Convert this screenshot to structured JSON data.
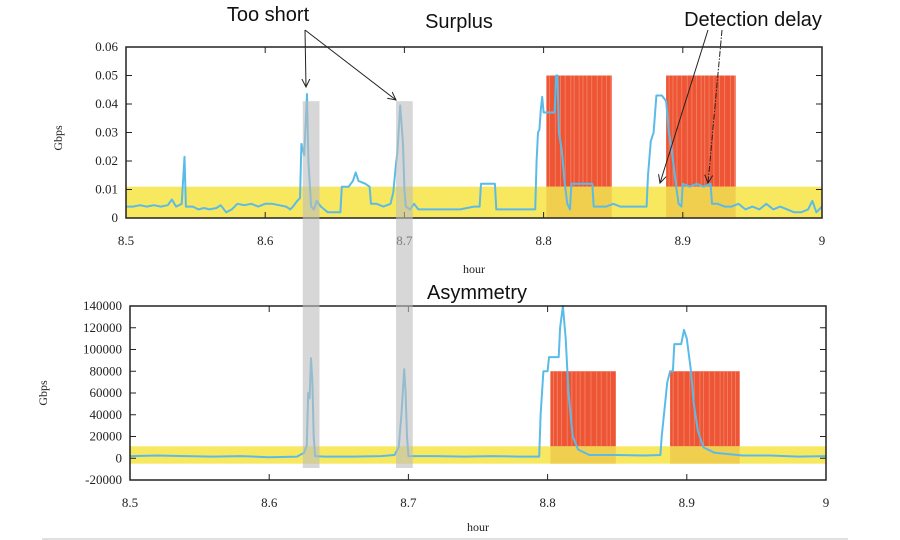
{
  "chart_data": [
    {
      "type": "line",
      "title": "Surplus",
      "xlabel": "hour",
      "ylabel": "Gbps",
      "xlim": [
        8.5,
        9
      ],
      "ylim": [
        0,
        0.06
      ],
      "x_ticks": [
        "8.5",
        "8.6",
        "8.7",
        "8.8",
        "8.9",
        "9"
      ],
      "y_ticks": [
        "0",
        "0.01",
        "0.02",
        "0.03",
        "0.04",
        "0.05",
        "0.06"
      ],
      "grid": false,
      "normal_band": {
        "y_min": 0,
        "y_max": 0.011,
        "color": "#f7e64f"
      },
      "alarm_regions": [
        {
          "x_start": 8.802,
          "x_end": 8.849,
          "y_max": 0.05,
          "color": "#ee5535"
        },
        {
          "x_start": 8.888,
          "x_end": 8.938,
          "y_max": 0.05,
          "color": "#ee5535"
        }
      ],
      "short_regions": [
        {
          "x_start": 8.627,
          "x_end": 8.639,
          "color": "#bdbdbd"
        },
        {
          "x_start": 8.694,
          "x_end": 8.706,
          "color": "#bdbdbd"
        }
      ],
      "series": [
        {
          "name": "Surplus",
          "color": "#5bbbe8",
          "points": [
            [
              8.5,
              0.004
            ],
            [
              8.505,
              0.004
            ],
            [
              8.51,
              0.0045
            ],
            [
              8.515,
              0.004
            ],
            [
              8.52,
              0.0045
            ],
            [
              8.525,
              0.004
            ],
            [
              8.53,
              0.0045
            ],
            [
              8.533,
              0.0065
            ],
            [
              8.536,
              0.004
            ],
            [
              8.54,
              0.005
            ],
            [
              8.542,
              0.0215
            ],
            [
              8.543,
              0.004
            ],
            [
              8.548,
              0.004
            ],
            [
              8.552,
              0.003
            ],
            [
              8.556,
              0.0035
            ],
            [
              8.56,
              0.003
            ],
            [
              8.565,
              0.0035
            ],
            [
              8.568,
              0.0045
            ],
            [
              8.572,
              0.002
            ],
            [
              8.576,
              0.003
            ],
            [
              8.58,
              0.005
            ],
            [
              8.585,
              0.0045
            ],
            [
              8.59,
              0.005
            ],
            [
              8.595,
              0.004
            ],
            [
              8.6,
              0.005
            ],
            [
              8.605,
              0.005
            ],
            [
              8.61,
              0.0045
            ],
            [
              8.615,
              0.004
            ],
            [
              8.618,
              0.003
            ],
            [
              8.62,
              0.004
            ],
            [
              8.623,
              0.006
            ],
            [
              8.625,
              0.007
            ],
            [
              8.626,
              0.026
            ],
            [
              8.628,
              0.022
            ],
            [
              8.63,
              0.0435
            ],
            [
              8.631,
              0.02
            ],
            [
              8.633,
              0.004
            ],
            [
              8.635,
              0.003
            ],
            [
              8.637,
              0.006
            ],
            [
              8.64,
              0.004
            ],
            [
              8.645,
              0.002
            ],
            [
              8.65,
              0.002
            ],
            [
              8.654,
              0.002
            ],
            [
              8.655,
              0.011
            ],
            [
              8.66,
              0.011
            ],
            [
              8.663,
              0.013
            ],
            [
              8.665,
              0.016
            ],
            [
              8.667,
              0.013
            ],
            [
              8.672,
              0.012
            ],
            [
              8.675,
              0.011
            ],
            [
              8.676,
              0.005
            ],
            [
              8.68,
              0.005
            ],
            [
              8.685,
              0.004
            ],
            [
              8.69,
              0.005
            ],
            [
              8.692,
              0.009
            ],
            [
              8.694,
              0.019
            ],
            [
              8.695,
              0.023
            ],
            [
              8.697,
              0.0395
            ],
            [
              8.699,
              0.026
            ],
            [
              8.7,
              0.01
            ],
            [
              8.701,
              0.004
            ],
            [
              8.704,
              0.003
            ],
            [
              8.707,
              0.005
            ],
            [
              8.71,
              0.003
            ],
            [
              8.72,
              0.003
            ],
            [
              8.73,
              0.003
            ],
            [
              8.74,
              0.003
            ],
            [
              8.75,
              0.004
            ],
            [
              8.754,
              0.004
            ],
            [
              8.755,
              0.012
            ],
            [
              8.76,
              0.012
            ],
            [
              8.765,
              0.012
            ],
            [
              8.766,
              0.003
            ],
            [
              8.77,
              0.003
            ],
            [
              8.78,
              0.003
            ],
            [
              8.79,
              0.003
            ],
            [
              8.794,
              0.003
            ],
            [
              8.795,
              0.02
            ],
            [
              8.796,
              0.03
            ],
            [
              8.797,
              0.031
            ],
            [
              8.798,
              0.038
            ],
            [
              8.799,
              0.0425
            ],
            [
              8.8,
              0.037
            ],
            [
              8.805,
              0.037
            ],
            [
              8.808,
              0.037
            ],
            [
              8.809,
              0.05
            ],
            [
              8.81,
              0.05
            ],
            [
              8.811,
              0.03
            ],
            [
              8.813,
              0.024
            ],
            [
              8.815,
              0.013
            ],
            [
              8.817,
              0.005
            ],
            [
              8.819,
              0.003
            ],
            [
              8.82,
              0.012
            ],
            [
              8.825,
              0.012
            ],
            [
              8.83,
              0.012
            ],
            [
              8.835,
              0.012
            ],
            [
              8.836,
              0.004
            ],
            [
              8.84,
              0.004
            ],
            [
              8.845,
              0.004
            ],
            [
              8.85,
              0.005
            ],
            [
              8.855,
              0.004
            ],
            [
              8.86,
              0.004
            ],
            [
              8.865,
              0.004
            ],
            [
              8.87,
              0.004
            ],
            [
              8.874,
              0.004
            ],
            [
              8.875,
              0.015
            ],
            [
              8.877,
              0.027
            ],
            [
              8.879,
              0.03
            ],
            [
              8.881,
              0.043
            ],
            [
              8.885,
              0.043
            ],
            [
              8.888,
              0.041
            ],
            [
              8.89,
              0.03
            ],
            [
              8.892,
              0.024
            ],
            [
              8.895,
              0.012
            ],
            [
              8.897,
              0.005
            ],
            [
              8.899,
              0.004
            ],
            [
              8.9,
              0.012
            ],
            [
              8.905,
              0.011
            ],
            [
              8.91,
              0.012
            ],
            [
              8.915,
              0.011
            ],
            [
              8.92,
              0.012
            ],
            [
              8.921,
              0.005
            ],
            [
              8.925,
              0.005
            ],
            [
              8.93,
              0.004
            ],
            [
              8.935,
              0.004
            ],
            [
              8.94,
              0.005
            ],
            [
              8.945,
              0.003
            ],
            [
              8.95,
              0.004
            ],
            [
              8.955,
              0.003
            ],
            [
              8.96,
              0.005
            ],
            [
              8.965,
              0.003
            ],
            [
              8.97,
              0.004
            ],
            [
              8.975,
              0.003
            ],
            [
              8.98,
              0.002
            ],
            [
              8.985,
              0.002
            ],
            [
              8.99,
              0.003
            ],
            [
              8.993,
              0.006
            ],
            [
              8.996,
              0.002
            ],
            [
              9.0,
              0.004
            ]
          ]
        }
      ]
    },
    {
      "type": "line",
      "title": "Asymmetry",
      "xlabel": "hour",
      "ylabel": "Gbps",
      "xlim": [
        8.5,
        9
      ],
      "ylim": [
        -20000,
        140000
      ],
      "x_ticks": [
        "8.5",
        "8.6",
        "8.7",
        "8.8",
        "8.9",
        "9"
      ],
      "y_ticks": [
        "-20000",
        "0",
        "20000",
        "40000",
        "60000",
        "80000",
        "100000",
        "120000",
        "140000"
      ],
      "grid": false,
      "normal_band": {
        "y_min": -5000,
        "y_max": 11000,
        "color": "#f7e64f"
      },
      "alarm_regions": [
        {
          "x_start": 8.802,
          "x_end": 8.849,
          "y_max": 80000,
          "color": "#ee5535"
        },
        {
          "x_start": 8.888,
          "x_end": 8.938,
          "y_max": 80000,
          "color": "#ee5535"
        }
      ],
      "short_regions": [
        {
          "x_start": 8.627,
          "x_end": 8.639,
          "color": "#bdbdbd"
        },
        {
          "x_start": 8.694,
          "x_end": 8.706,
          "color": "#bdbdbd"
        }
      ],
      "series": [
        {
          "name": "Asymmetry",
          "color": "#5bbbe8",
          "points": [
            [
              8.5,
              2000
            ],
            [
              8.52,
              2500
            ],
            [
              8.54,
              2000
            ],
            [
              8.56,
              1500
            ],
            [
              8.58,
              2000
            ],
            [
              8.6,
              1000
            ],
            [
              8.62,
              1500
            ],
            [
              8.625,
              5000
            ],
            [
              8.627,
              12000
            ],
            [
              8.628,
              60000
            ],
            [
              8.629,
              55000
            ],
            [
              8.63,
              92000
            ],
            [
              8.631,
              70000
            ],
            [
              8.632,
              20000
            ],
            [
              8.633,
              2000
            ],
            [
              8.64,
              1500
            ],
            [
              8.66,
              1500
            ],
            [
              8.68,
              2000
            ],
            [
              8.69,
              3000
            ],
            [
              8.693,
              10000
            ],
            [
              8.695,
              40000
            ],
            [
              8.697,
              82000
            ],
            [
              8.698,
              60000
            ],
            [
              8.699,
              20000
            ],
            [
              8.7,
              2000
            ],
            [
              8.72,
              2000
            ],
            [
              8.74,
              1500
            ],
            [
              8.76,
              2000
            ],
            [
              8.78,
              1500
            ],
            [
              8.794,
              1500
            ],
            [
              8.795,
              40000
            ],
            [
              8.797,
              80000
            ],
            [
              8.8,
              80000
            ],
            [
              8.801,
              93000
            ],
            [
              8.808,
              93000
            ],
            [
              8.809,
              120000
            ],
            [
              8.811,
              140000
            ],
            [
              8.813,
              110000
            ],
            [
              8.815,
              60000
            ],
            [
              8.818,
              20000
            ],
            [
              8.822,
              8000
            ],
            [
              8.83,
              3000
            ],
            [
              8.85,
              3000
            ],
            [
              8.87,
              2500
            ],
            [
              8.881,
              3000
            ],
            [
              8.882,
              20000
            ],
            [
              8.884,
              45000
            ],
            [
              8.886,
              70000
            ],
            [
              8.888,
              80000
            ],
            [
              8.89,
              80000
            ],
            [
              8.891,
              105000
            ],
            [
              8.896,
              105000
            ],
            [
              8.898,
              118000
            ],
            [
              8.9,
              110000
            ],
            [
              8.903,
              80000
            ],
            [
              8.905,
              50000
            ],
            [
              8.908,
              25000
            ],
            [
              8.912,
              10000
            ],
            [
              8.92,
              5000
            ],
            [
              8.94,
              2500
            ],
            [
              8.96,
              2500
            ],
            [
              8.98,
              1500
            ],
            [
              9.0,
              2000
            ]
          ]
        }
      ]
    }
  ],
  "annotations": {
    "too_short": "Too short",
    "detection_delay": "Detection delay"
  }
}
